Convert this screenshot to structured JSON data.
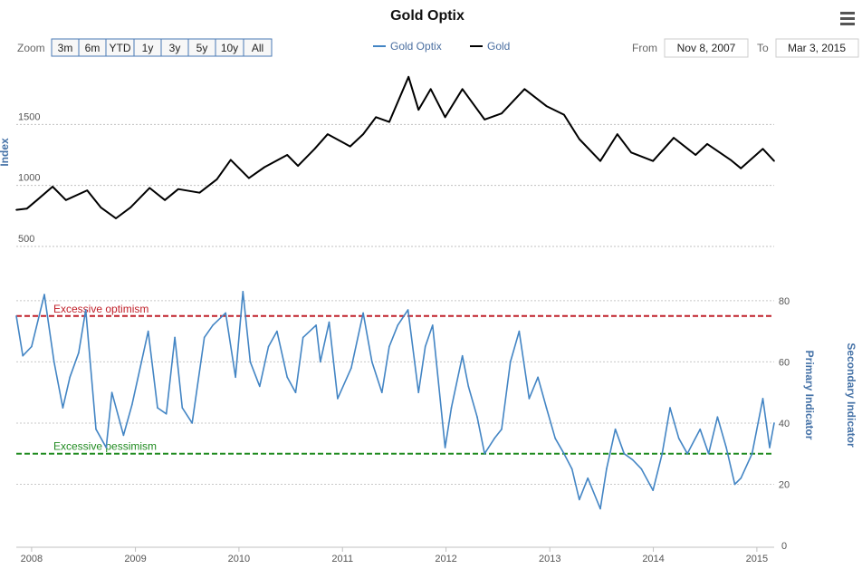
{
  "chart_data": {
    "type": "line",
    "title": "Gold Optix",
    "zoom": {
      "label": "Zoom",
      "buttons": [
        "3m",
        "6m",
        "YTD",
        "1y",
        "3y",
        "5y",
        "10y",
        "All"
      ]
    },
    "legend": {
      "position": "top-center",
      "items": [
        {
          "name": "Gold Optix",
          "color": "#4385c4"
        },
        {
          "name": "Gold",
          "color": "#000000"
        }
      ]
    },
    "range": {
      "from_label": "From",
      "from_value": "Nov 8, 2007",
      "to_label": "To",
      "to_value": "Mar 3, 2015"
    },
    "x_axis": {
      "type": "date",
      "range": [
        "2007-11-08",
        "2015-03-03"
      ],
      "ticks": [
        {
          "label": "2008",
          "date": "2008-01-01"
        },
        {
          "label": "2009",
          "date": "2009-01-01"
        },
        {
          "label": "2010",
          "date": "2010-01-01"
        },
        {
          "label": "2011",
          "date": "2011-01-01"
        },
        {
          "label": "2012",
          "date": "2012-01-01"
        },
        {
          "label": "2013",
          "date": "2013-01-01"
        },
        {
          "label": "2014",
          "date": "2014-01-01"
        },
        {
          "label": "2015",
          "date": "2015-01-01"
        }
      ]
    },
    "gold_axis": {
      "title": "Index",
      "range": [
        500,
        2000
      ],
      "ticks": [
        {
          "label": "500",
          "value": 500
        },
        {
          "label": "1000",
          "value": 1000
        },
        {
          "label": "1500",
          "value": 1500
        }
      ],
      "grid": true
    },
    "optix_axis": {
      "title": "Primary Indicator",
      "secondary_title": "Secondary Indicator",
      "range": [
        0,
        85
      ],
      "ticks": [
        {
          "label": "0",
          "value": 0
        },
        {
          "label": "20",
          "value": 20
        },
        {
          "label": "40",
          "value": 40
        },
        {
          "label": "60",
          "value": 60
        },
        {
          "label": "80",
          "value": 80
        }
      ],
      "grid": true
    },
    "plot_lines": [
      {
        "label": "Excessive optimism",
        "value": 75,
        "color": "#c0202a"
      },
      {
        "label": "Excessive pessimism",
        "value": 30,
        "color": "#218b21"
      }
    ],
    "series": [
      {
        "name": "Gold",
        "color": "#000000",
        "axis": "gold",
        "points": [
          [
            "2007-11-08",
            800
          ],
          [
            "2007-12-15",
            810
          ],
          [
            "2008-01-20",
            880
          ],
          [
            "2008-03-15",
            990
          ],
          [
            "2008-05-01",
            880
          ],
          [
            "2008-07-15",
            960
          ],
          [
            "2008-09-01",
            820
          ],
          [
            "2008-10-24",
            730
          ],
          [
            "2008-12-15",
            820
          ],
          [
            "2009-02-20",
            980
          ],
          [
            "2009-04-15",
            880
          ],
          [
            "2009-06-01",
            970
          ],
          [
            "2009-08-15",
            940
          ],
          [
            "2009-10-15",
            1050
          ],
          [
            "2009-12-03",
            1210
          ],
          [
            "2010-02-05",
            1060
          ],
          [
            "2010-04-01",
            1150
          ],
          [
            "2010-06-20",
            1250
          ],
          [
            "2010-07-28",
            1160
          ],
          [
            "2010-09-25",
            1300
          ],
          [
            "2010-11-10",
            1420
          ],
          [
            "2011-01-28",
            1320
          ],
          [
            "2011-03-15",
            1420
          ],
          [
            "2011-04-29",
            1560
          ],
          [
            "2011-06-15",
            1520
          ],
          [
            "2011-08-22",
            1890
          ],
          [
            "2011-09-26",
            1620
          ],
          [
            "2011-11-08",
            1790
          ],
          [
            "2011-12-29",
            1560
          ],
          [
            "2012-02-28",
            1790
          ],
          [
            "2012-05-16",
            1540
          ],
          [
            "2012-07-15",
            1590
          ],
          [
            "2012-10-04",
            1790
          ],
          [
            "2012-12-20",
            1650
          ],
          [
            "2013-02-20",
            1580
          ],
          [
            "2013-04-15",
            1380
          ],
          [
            "2013-06-28",
            1200
          ],
          [
            "2013-08-27",
            1420
          ],
          [
            "2013-10-15",
            1270
          ],
          [
            "2013-12-31",
            1200
          ],
          [
            "2014-03-14",
            1390
          ],
          [
            "2014-05-30",
            1250
          ],
          [
            "2014-07-10",
            1340
          ],
          [
            "2014-09-30",
            1210
          ],
          [
            "2014-11-06",
            1140
          ],
          [
            "2015-01-22",
            1300
          ],
          [
            "2015-03-03",
            1200
          ]
        ]
      },
      {
        "name": "Gold Optix",
        "color": "#4385c4",
        "axis": "optix",
        "points": [
          [
            "2007-11-08",
            75
          ],
          [
            "2007-12-01",
            62
          ],
          [
            "2008-01-01",
            65
          ],
          [
            "2008-02-15",
            82
          ],
          [
            "2008-03-20",
            60
          ],
          [
            "2008-04-20",
            45
          ],
          [
            "2008-05-15",
            55
          ],
          [
            "2008-06-15",
            63
          ],
          [
            "2008-07-10",
            77
          ],
          [
            "2008-08-15",
            38
          ],
          [
            "2008-09-20",
            32
          ],
          [
            "2008-10-10",
            50
          ],
          [
            "2008-11-20",
            36
          ],
          [
            "2008-12-20",
            46
          ],
          [
            "2009-02-15",
            70
          ],
          [
            "2009-03-20",
            45
          ],
          [
            "2009-04-20",
            43
          ],
          [
            "2009-05-20",
            68
          ],
          [
            "2009-06-15",
            45
          ],
          [
            "2009-07-20",
            40
          ],
          [
            "2009-09-01",
            68
          ],
          [
            "2009-10-01",
            72
          ],
          [
            "2009-11-15",
            76
          ],
          [
            "2009-12-20",
            55
          ],
          [
            "2010-01-15",
            83
          ],
          [
            "2010-02-10",
            60
          ],
          [
            "2010-03-15",
            52
          ],
          [
            "2010-04-15",
            65
          ],
          [
            "2010-05-15",
            70
          ],
          [
            "2010-06-20",
            55
          ],
          [
            "2010-07-20",
            50
          ],
          [
            "2010-08-15",
            68
          ],
          [
            "2010-09-30",
            72
          ],
          [
            "2010-10-15",
            60
          ],
          [
            "2010-11-15",
            73
          ],
          [
            "2010-12-15",
            48
          ],
          [
            "2011-02-01",
            58
          ],
          [
            "2011-03-15",
            76
          ],
          [
            "2011-04-15",
            60
          ],
          [
            "2011-05-20",
            50
          ],
          [
            "2011-06-15",
            65
          ],
          [
            "2011-07-15",
            72
          ],
          [
            "2011-08-20",
            77
          ],
          [
            "2011-09-26",
            50
          ],
          [
            "2011-10-20",
            65
          ],
          [
            "2011-11-15",
            72
          ],
          [
            "2011-12-29",
            32
          ],
          [
            "2012-01-20",
            45
          ],
          [
            "2012-02-28",
            62
          ],
          [
            "2012-03-20",
            52
          ],
          [
            "2012-04-20",
            42
          ],
          [
            "2012-05-16",
            30
          ],
          [
            "2012-06-20",
            35
          ],
          [
            "2012-07-15",
            38
          ],
          [
            "2012-08-15",
            60
          ],
          [
            "2012-09-15",
            70
          ],
          [
            "2012-10-20",
            48
          ],
          [
            "2012-11-20",
            55
          ],
          [
            "2012-12-20",
            45
          ],
          [
            "2013-01-20",
            35
          ],
          [
            "2013-02-20",
            30
          ],
          [
            "2013-03-20",
            25
          ],
          [
            "2013-04-15",
            15
          ],
          [
            "2013-05-15",
            22
          ],
          [
            "2013-06-28",
            12
          ],
          [
            "2013-07-20",
            25
          ],
          [
            "2013-08-20",
            38
          ],
          [
            "2013-09-20",
            30
          ],
          [
            "2013-10-20",
            28
          ],
          [
            "2013-11-20",
            25
          ],
          [
            "2013-12-31",
            18
          ],
          [
            "2014-02-01",
            30
          ],
          [
            "2014-03-01",
            45
          ],
          [
            "2014-04-01",
            35
          ],
          [
            "2014-05-01",
            30
          ],
          [
            "2014-06-15",
            38
          ],
          [
            "2014-07-15",
            30
          ],
          [
            "2014-08-15",
            42
          ],
          [
            "2014-09-15",
            32
          ],
          [
            "2014-10-15",
            20
          ],
          [
            "2014-11-06",
            22
          ],
          [
            "2014-12-15",
            30
          ],
          [
            "2015-01-22",
            48
          ],
          [
            "2015-02-15",
            32
          ],
          [
            "2015-03-03",
            40
          ]
        ]
      }
    ]
  }
}
